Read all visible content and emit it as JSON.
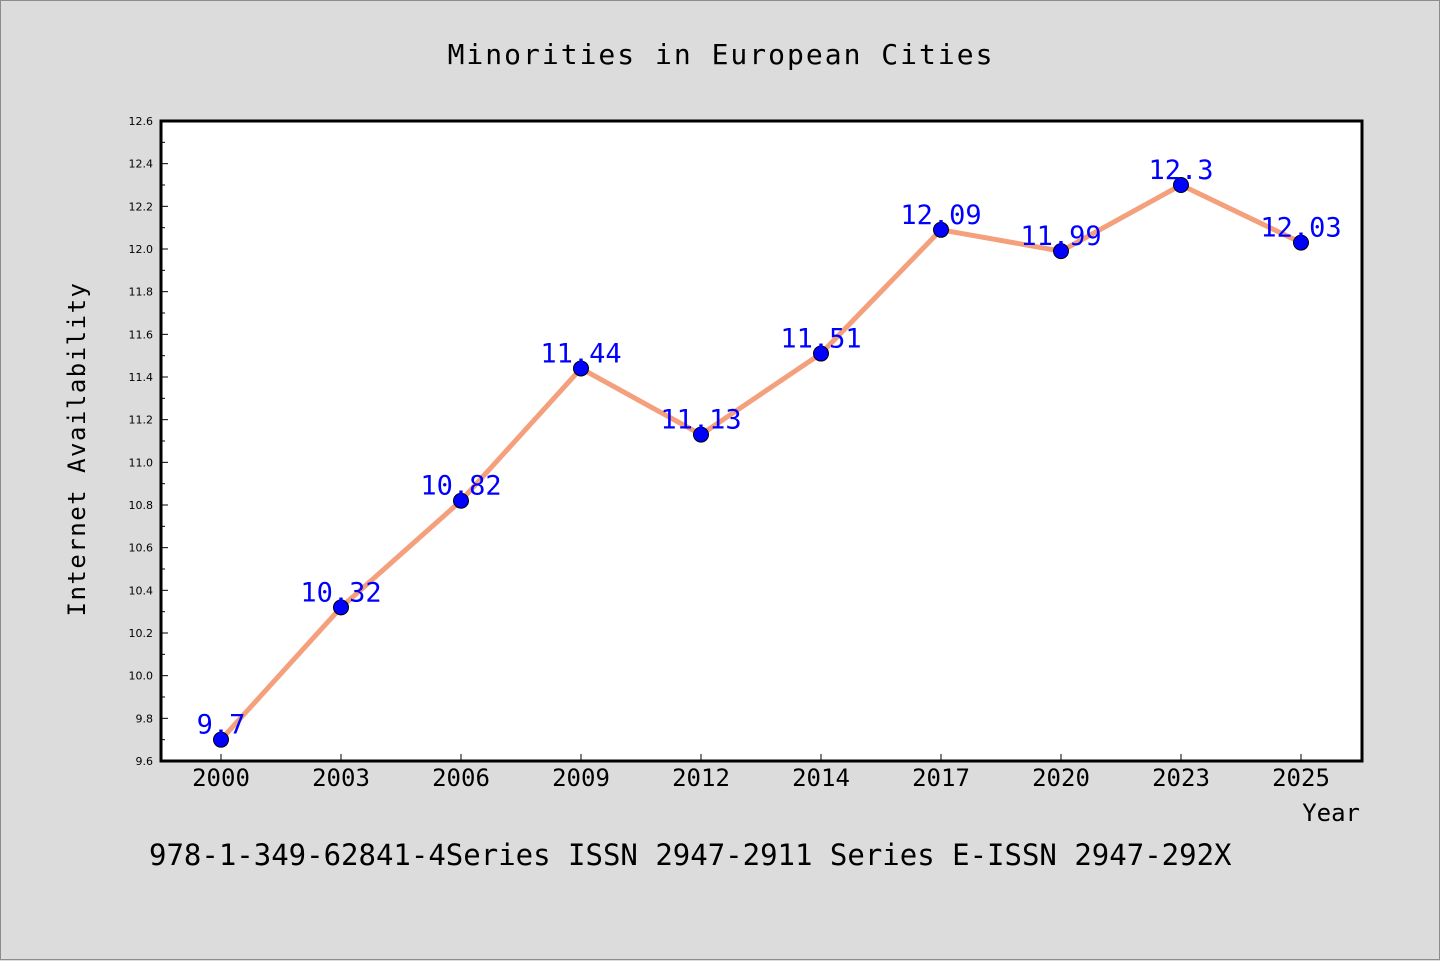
{
  "chart_data": {
    "type": "line",
    "title": "Minorities in European Cities",
    "xlabel": "Year",
    "ylabel": "Internet Availability",
    "categories": [
      "2000",
      "2003",
      "2006",
      "2009",
      "2012",
      "2014",
      "2017",
      "2020",
      "2023",
      "2025"
    ],
    "series": [
      {
        "values": [
          9.7,
          10.32,
          10.82,
          11.44,
          11.13,
          11.51,
          12.09,
          11.99,
          12.3,
          12.03
        ],
        "data_labels": [
          "9.7",
          "10.32",
          "10.82",
          "11.44",
          "11.13",
          "11.51",
          "12.09",
          "11.99",
          "12.3",
          "12.03"
        ],
        "line_color": "#f4a07c",
        "marker_color": "#0000ff"
      }
    ],
    "ylim": [
      9.6,
      12.6
    ],
    "yticks": [
      "9.6",
      "9.8",
      "10.0",
      "10.2",
      "10.4",
      "10.6",
      "10.8",
      "11.0",
      "11.2",
      "11.4",
      "11.6",
      "11.8",
      "12.0",
      "12.2",
      "12.4",
      "12.6"
    ],
    "grid": false,
    "label_color": "#0000ff"
  },
  "footer": {
    "text": "978-1-349-62841-4Series ISSN 2947-2911 Series E-ISSN 2947-292X"
  }
}
